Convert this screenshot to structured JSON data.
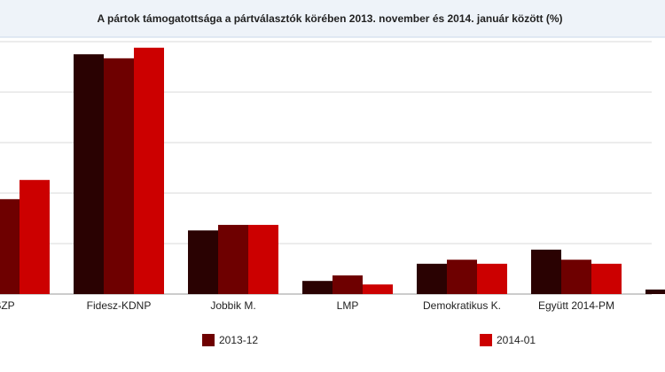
{
  "chart_data": {
    "type": "bar",
    "title": "A pártok támogatottsága a pártválasztók körében 2013. november és 2014. január között (%)",
    "categories": [
      "SZP",
      "Fidesz-KDNP",
      "Jobbik M.",
      "LMP",
      "Demokratikus K.",
      "Együtt 2014-PM",
      null
    ],
    "series": [
      {
        "color": "#2a0202",
        "values": [
          null,
          47.5,
          12.6,
          2.6,
          6.0,
          8.8,
          0.9
        ]
      },
      {
        "name": "2013-12",
        "color": "#6e0000",
        "values": [
          18.8,
          46.7,
          13.7,
          3.7,
          6.8,
          6.8,
          null
        ]
      },
      {
        "name": "2014-01",
        "color": "#cc0000",
        "values": [
          22.6,
          48.8,
          13.7,
          1.9,
          6.0,
          6.0,
          null
        ]
      }
    ],
    "ylim": [
      0,
      50
    ],
    "yticks": [
      0,
      10,
      20,
      30,
      40,
      50
    ],
    "grid": true
  }
}
